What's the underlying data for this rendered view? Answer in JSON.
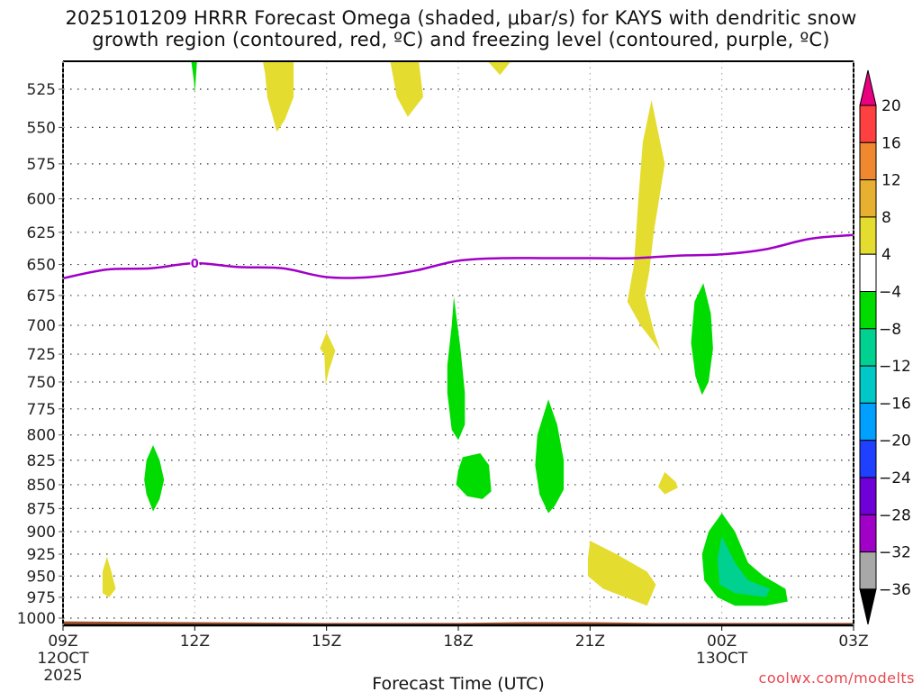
{
  "chart_data": {
    "type": "heatmap",
    "title_lines": [
      "2025101209 HRRR Forecast Omega (shaded, μbar/s) for KAYS with dendritic snow",
      "growth region (contoured, red, ºC) and freezing level (contoured, purple, ºC)"
    ],
    "xlabel": "Forecast Time (UTC)",
    "ylabel": "",
    "credit": "coolwx.com/modelts",
    "x_unit": "hours since 09Z 12 OCT 2025",
    "xlim": [
      0,
      18
    ],
    "x_ticks": [
      {
        "hour": 0,
        "label": "09Z",
        "sub": [
          "12OCT",
          "2025"
        ]
      },
      {
        "hour": 3,
        "label": "12Z",
        "sub": []
      },
      {
        "hour": 6,
        "label": "15Z",
        "sub": []
      },
      {
        "hour": 9,
        "label": "18Z",
        "sub": []
      },
      {
        "hour": 12,
        "label": "21Z",
        "sub": []
      },
      {
        "hour": 15,
        "label": "00Z",
        "sub": [
          "13OCT"
        ]
      },
      {
        "hour": 18,
        "label": "03Z",
        "sub": []
      }
    ],
    "y_unit": "hPa",
    "y_scale": "log",
    "ylim": [
      1008,
      507
    ],
    "y_ticks": [
      525,
      550,
      575,
      600,
      625,
      650,
      675,
      700,
      725,
      750,
      775,
      800,
      825,
      850,
      875,
      900,
      925,
      950,
      975,
      1000
    ],
    "grid": true,
    "colorbar": {
      "placement": "right",
      "levels": [
        20,
        16,
        12,
        8,
        4,
        -4,
        -8,
        -12,
        -16,
        -20,
        -24,
        -28,
        -32,
        -36
      ],
      "colors": [
        "#e8007e",
        "#ff4040",
        "#f08830",
        "#e8b030",
        "#e5dc30",
        "#ffffff",
        "#00dc00",
        "#00d090",
        "#00c8c8",
        "#00a0ff",
        "#2040ff",
        "#7000d8",
        "#a000c8",
        "#a8a8a8",
        "#000000"
      ],
      "extend": "both"
    },
    "omega_regions": [
      {
        "name": "green-12z-top",
        "class": "-4 to -8",
        "color": "#00dc00",
        "points": [
          [
            2.92,
            507
          ],
          [
            3.05,
            507
          ],
          [
            3.02,
            520
          ],
          [
            3.0,
            528
          ],
          [
            2.98,
            520
          ]
        ]
      },
      {
        "name": "yellow-14z-top",
        "class": "4 to 8",
        "color": "#e5dc30",
        "points": [
          [
            4.55,
            507
          ],
          [
            5.25,
            507
          ],
          [
            5.25,
            530
          ],
          [
            5.05,
            545
          ],
          [
            4.87,
            553
          ],
          [
            4.65,
            530
          ],
          [
            4.6,
            515
          ]
        ]
      },
      {
        "name": "yellow-1630z-top",
        "class": "4 to 8",
        "color": "#e5dc30",
        "points": [
          [
            7.45,
            507
          ],
          [
            8.1,
            507
          ],
          [
            8.2,
            530
          ],
          [
            7.85,
            543
          ],
          [
            7.6,
            530
          ]
        ]
      },
      {
        "name": "yellow-19z-top",
        "class": "4 to 8",
        "color": "#e5dc30",
        "points": [
          [
            9.67,
            507
          ],
          [
            10.2,
            507
          ],
          [
            9.95,
            516
          ]
        ]
      },
      {
        "name": "yellow-22z-tall",
        "class": "4 to 8",
        "color": "#e5dc30",
        "points": [
          [
            13.4,
            532
          ],
          [
            13.7,
            575
          ],
          [
            13.45,
            625
          ],
          [
            13.35,
            655
          ],
          [
            13.25,
            675
          ],
          [
            13.45,
            705
          ],
          [
            13.6,
            722
          ],
          [
            13.15,
            700
          ],
          [
            12.85,
            680
          ],
          [
            13.0,
            650
          ],
          [
            13.1,
            600
          ],
          [
            13.2,
            560
          ]
        ]
      },
      {
        "name": "green-2330z",
        "class": "-4 to -8",
        "color": "#00dc00",
        "points": [
          [
            14.58,
            665
          ],
          [
            14.75,
            690
          ],
          [
            14.8,
            720
          ],
          [
            14.7,
            750
          ],
          [
            14.55,
            762
          ],
          [
            14.4,
            745
          ],
          [
            14.3,
            715
          ],
          [
            14.38,
            680
          ]
        ]
      },
      {
        "name": "yellow-15z-small",
        "class": "4 to 8",
        "color": "#e5dc30",
        "points": [
          [
            6.0,
            706
          ],
          [
            6.2,
            722
          ],
          [
            6.05,
            740
          ],
          [
            5.98,
            753
          ],
          [
            5.95,
            725
          ],
          [
            5.85,
            720
          ]
        ]
      },
      {
        "name": "green-17z-tall",
        "class": "-4 to -8",
        "color": "#00dc00",
        "points": [
          [
            8.9,
            676
          ],
          [
            9.05,
            720
          ],
          [
            9.15,
            760
          ],
          [
            9.15,
            790
          ],
          [
            9.0,
            805
          ],
          [
            8.85,
            795
          ],
          [
            8.75,
            760
          ],
          [
            8.75,
            735
          ],
          [
            8.85,
            700
          ]
        ]
      },
      {
        "name": "green-11z",
        "class": "-4 to -8",
        "color": "#00dc00",
        "points": [
          [
            2.05,
            810
          ],
          [
            2.2,
            825
          ],
          [
            2.3,
            845
          ],
          [
            2.2,
            865
          ],
          [
            2.05,
            878
          ],
          [
            1.9,
            860
          ],
          [
            1.85,
            845
          ],
          [
            1.9,
            825
          ]
        ]
      },
      {
        "name": "green-18z",
        "class": "-4 to -8",
        "color": "#00dc00",
        "points": [
          [
            9.1,
            822
          ],
          [
            9.5,
            818
          ],
          [
            9.7,
            830
          ],
          [
            9.75,
            857
          ],
          [
            9.55,
            865
          ],
          [
            9.2,
            862
          ],
          [
            8.95,
            850
          ],
          [
            9.0,
            835
          ]
        ]
      },
      {
        "name": "green-20z",
        "class": "-4 to -8",
        "color": "#00dc00",
        "points": [
          [
            11.05,
            766
          ],
          [
            11.25,
            790
          ],
          [
            11.4,
            825
          ],
          [
            11.4,
            855
          ],
          [
            11.2,
            872
          ],
          [
            11.05,
            880
          ],
          [
            10.85,
            860
          ],
          [
            10.75,
            830
          ],
          [
            10.8,
            800
          ]
        ]
      },
      {
        "name": "yellow-2230z-small",
        "class": "4 to 8",
        "color": "#e5dc30",
        "points": [
          [
            13.7,
            837
          ],
          [
            13.95,
            847
          ],
          [
            14.0,
            853
          ],
          [
            13.7,
            860
          ],
          [
            13.55,
            852
          ]
        ]
      },
      {
        "name": "yellow-0930z-bottom",
        "class": "4 to 8",
        "color": "#e5dc30",
        "points": [
          [
            1.0,
            928
          ],
          [
            1.1,
            945
          ],
          [
            1.2,
            965
          ],
          [
            1.05,
            975
          ],
          [
            0.9,
            970
          ],
          [
            0.9,
            945
          ]
        ]
      },
      {
        "name": "yellow-21z-bottom",
        "class": "4 to 8",
        "color": "#e5dc30",
        "points": [
          [
            12.0,
            910
          ],
          [
            12.6,
            925
          ],
          [
            13.3,
            945
          ],
          [
            13.5,
            960
          ],
          [
            13.3,
            985
          ],
          [
            12.8,
            975
          ],
          [
            12.3,
            965
          ],
          [
            11.95,
            950
          ],
          [
            11.95,
            930
          ]
        ]
      },
      {
        "name": "green-00z-bottom",
        "class": "-4 to -8",
        "color": "#00dc00",
        "points": [
          [
            15.0,
            880
          ],
          [
            15.3,
            900
          ],
          [
            15.6,
            935
          ],
          [
            15.95,
            950
          ],
          [
            16.45,
            965
          ],
          [
            16.5,
            980
          ],
          [
            16.0,
            985
          ],
          [
            15.3,
            985
          ],
          [
            14.9,
            975
          ],
          [
            14.6,
            955
          ],
          [
            14.55,
            925
          ],
          [
            14.7,
            900
          ]
        ]
      },
      {
        "name": "teal-00z-bottom",
        "class": "-8 to -12",
        "color": "#00d090",
        "points": [
          [
            15.0,
            905
          ],
          [
            15.3,
            935
          ],
          [
            15.6,
            955
          ],
          [
            16.1,
            965
          ],
          [
            16.0,
            975
          ],
          [
            15.3,
            970
          ],
          [
            14.95,
            960
          ],
          [
            14.9,
            930
          ]
        ]
      }
    ],
    "freezing_level": {
      "label": "0",
      "label_at_hour": 3.0,
      "color": "#a000c8",
      "points": [
        [
          0,
          661
        ],
        [
          1,
          654
        ],
        [
          2,
          653
        ],
        [
          3,
          649
        ],
        [
          4,
          652
        ],
        [
          5,
          653
        ],
        [
          6,
          660
        ],
        [
          7,
          660
        ],
        [
          8,
          655
        ],
        [
          9,
          647
        ],
        [
          10,
          645
        ],
        [
          11,
          645
        ],
        [
          12,
          645
        ],
        [
          13,
          645
        ],
        [
          14,
          643
        ],
        [
          15,
          642
        ],
        [
          16,
          638
        ],
        [
          17,
          630
        ],
        [
          18,
          627
        ]
      ]
    },
    "terrain": {
      "color": "#a0522d",
      "points": [
        [
          0,
          1004
        ],
        [
          3,
          1005
        ],
        [
          6,
          1006
        ],
        [
          9,
          1006
        ],
        [
          10.5,
          1005
        ],
        [
          12,
          1005
        ],
        [
          13.5,
          1006
        ],
        [
          15,
          1006
        ],
        [
          18,
          1006
        ]
      ]
    }
  }
}
